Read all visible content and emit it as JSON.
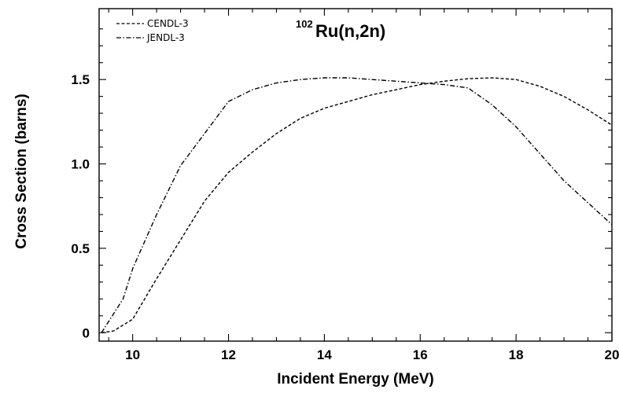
{
  "chart_data": {
    "type": "line",
    "title": {
      "superscript": "102",
      "text": "Ru(n,2n)"
    },
    "xlabel": "Incident Energy (MeV)",
    "ylabel": "Cross Section (barns)",
    "xlim": [
      9.3,
      20
    ],
    "ylim": [
      -0.05,
      1.92
    ],
    "xticks": [
      10,
      12,
      14,
      16,
      18,
      20
    ],
    "xtick_labels": [
      "10",
      "12",
      "14",
      "16",
      "18",
      "20"
    ],
    "yticks": [
      0,
      0.5,
      1.0,
      1.5
    ],
    "ytick_labels": [
      "0",
      "0.5",
      "1.0",
      "1.5"
    ],
    "legend_position": "top-left",
    "grid": false,
    "series": [
      {
        "name": "CENDL-3",
        "style": "dashed",
        "color": "#000000",
        "x": [
          9.35,
          9.6,
          10.0,
          10.5,
          11.0,
          11.5,
          12.0,
          12.5,
          13.0,
          13.5,
          14.0,
          14.5,
          15.0,
          15.5,
          16.0,
          16.5,
          17.0,
          17.5,
          18.0,
          18.5,
          19.0,
          19.5,
          20.0
        ],
        "y": [
          0.0,
          0.01,
          0.08,
          0.32,
          0.55,
          0.78,
          0.95,
          1.07,
          1.18,
          1.27,
          1.33,
          1.37,
          1.41,
          1.44,
          1.47,
          1.49,
          1.505,
          1.51,
          1.5,
          1.46,
          1.4,
          1.32,
          1.23
        ]
      },
      {
        "name": "JENDL-3",
        "style": "dash-dot",
        "color": "#000000",
        "x": [
          9.35,
          9.8,
          10.0,
          10.5,
          11.0,
          11.5,
          12.0,
          12.5,
          13.0,
          13.5,
          14.0,
          14.5,
          15.0,
          15.5,
          16.0,
          16.5,
          17.0,
          17.5,
          18.0,
          18.5,
          19.0,
          19.5,
          20.0
        ],
        "y": [
          0.0,
          0.2,
          0.38,
          0.7,
          0.99,
          1.18,
          1.37,
          1.44,
          1.48,
          1.5,
          1.51,
          1.51,
          1.5,
          1.49,
          1.48,
          1.47,
          1.45,
          1.35,
          1.22,
          1.06,
          0.9,
          0.77,
          0.64
        ]
      }
    ]
  }
}
